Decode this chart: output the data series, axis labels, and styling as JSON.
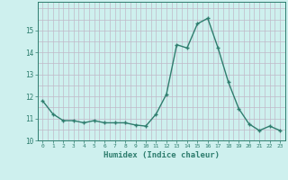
{
  "x": [
    0,
    1,
    2,
    3,
    4,
    5,
    6,
    7,
    8,
    9,
    10,
    11,
    12,
    13,
    14,
    15,
    16,
    17,
    18,
    19,
    20,
    21,
    22,
    23
  ],
  "y": [
    11.8,
    11.2,
    10.9,
    10.9,
    10.8,
    10.9,
    10.8,
    10.8,
    10.8,
    10.7,
    10.65,
    11.2,
    12.1,
    14.35,
    14.2,
    15.3,
    15.55,
    14.2,
    12.65,
    11.45,
    10.75,
    10.45,
    10.65,
    10.45
  ],
  "ylim": [
    10,
    16
  ],
  "yticks": [
    10,
    11,
    12,
    13,
    14,
    15
  ],
  "xlabel": "Humidex (Indice chaleur)",
  "line_color": "#2e7d6e",
  "marker": "+",
  "marker_size": 3.5,
  "bg_color": "#cef0ee",
  "grid_color": "#c0b8c8",
  "tick_color": "#2e7d6e",
  "label_color": "#2e7d6e",
  "linewidth": 1.0
}
